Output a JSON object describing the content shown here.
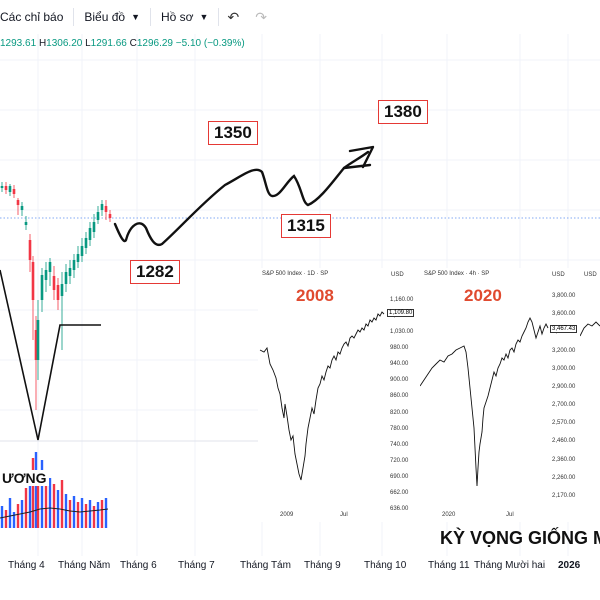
{
  "toolbar": {
    "indicators_label": "Các chỉ báo",
    "chart_type_label": "Biểu đồ",
    "profile_label": "Hồ sơ"
  },
  "ohlc": {
    "open": "1293.61",
    "high_key": "H",
    "high": "1306.20",
    "low_key": "L",
    "low": "1291.66",
    "close_key": "C",
    "close": "1296.29",
    "change": "−5.10 (−0.39%)"
  },
  "targets": {
    "t1350": "1350",
    "t1380": "1380",
    "t1315": "1315",
    "t1282": "1282"
  },
  "volume_label": "ƯƠNG",
  "x_axis": [
    "Tháng 4",
    "Tháng Năm",
    "Tháng 6",
    "Tháng 7",
    "Tháng Tám",
    "Tháng 9",
    "Tháng 10",
    "Tháng 11",
    "Tháng Mười hai",
    "2026"
  ],
  "insets": {
    "i2008": {
      "header": "S&P 500 Index · 1D · SP",
      "currency": "USD",
      "year": "2008",
      "ticks": [
        "1,160.00",
        "1,080.00",
        "1,030.00",
        "980.00",
        "940.00",
        "900.00",
        "860.00",
        "820.00",
        "780.00",
        "740.00",
        "720.00",
        "690.00",
        "662.00",
        "636.00"
      ],
      "price_tag": "1,109.80",
      "x_labels": [
        "2009",
        "Jul"
      ]
    },
    "i2020": {
      "header": "S&P 500 Index · 4h · SP",
      "currency": "USD",
      "year": "2020",
      "ticks": [
        "3,800.00",
        "3,600.00",
        "3,400.00",
        "3,200.00",
        "3,000.00",
        "2,900.00",
        "2,700.00",
        "2,570.00",
        "2,460.00",
        "2,360.00",
        "2,260.00",
        "2,170.00"
      ],
      "price_tag": "3,467.43",
      "x_labels": [
        "2020",
        "Jul"
      ]
    },
    "i3": {
      "currency": "USD"
    }
  },
  "headline": "KỲ VỌNG GIỐNG M",
  "colors": {
    "up": "#089981",
    "down": "#f23645",
    "target_border": "#e53935",
    "year_text": "#e04a2f",
    "volume_up": "#2962ff",
    "volume_down": "#f23645"
  }
}
